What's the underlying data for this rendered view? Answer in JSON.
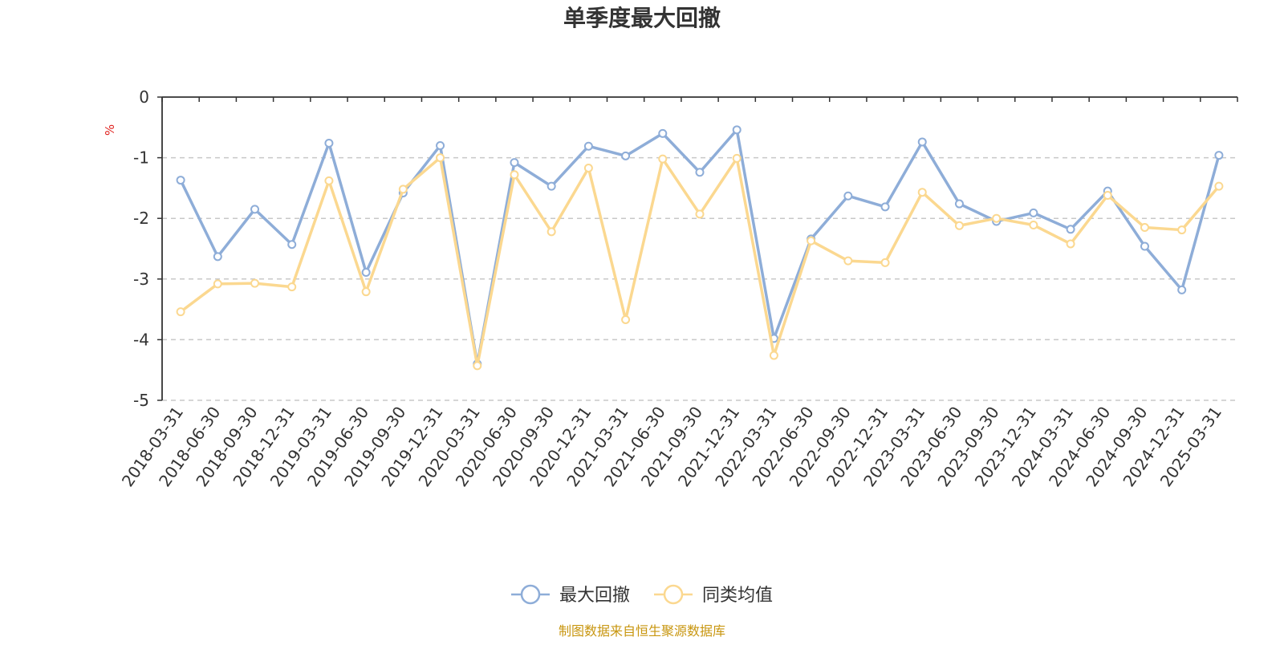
{
  "chart_data": {
    "type": "line",
    "title": "单季度最大回撤",
    "ylabel": "%",
    "ylim": [
      -5,
      0
    ],
    "yticks": [
      0,
      -1,
      -2,
      -3,
      -4,
      -5
    ],
    "grid": true,
    "legend_position": "bottom-center",
    "x": [
      "2018-03-31",
      "2018-06-30",
      "2018-09-30",
      "2018-12-31",
      "2019-03-31",
      "2019-06-30",
      "2019-09-30",
      "2019-12-31",
      "2020-03-31",
      "2020-06-30",
      "2020-09-30",
      "2020-12-31",
      "2021-03-31",
      "2021-06-30",
      "2021-09-30",
      "2021-12-31",
      "2022-03-31",
      "2022-06-30",
      "2022-09-30",
      "2022-12-31",
      "2023-03-31",
      "2023-06-30",
      "2023-09-30",
      "2023-12-31",
      "2024-03-31",
      "2024-06-30",
      "2024-09-30",
      "2024-12-31",
      "2025-03-31"
    ],
    "series": [
      {
        "name": "最大回撤",
        "color": "#8eadd8",
        "values": [
          -1.37,
          -2.63,
          -1.85,
          -2.43,
          -0.76,
          -2.89,
          -1.58,
          -0.8,
          -4.4,
          -1.08,
          -1.47,
          -0.81,
          -0.97,
          -0.6,
          -1.24,
          -0.54,
          -3.98,
          -2.34,
          -1.63,
          -1.81,
          -0.74,
          -1.76,
          -2.05,
          -1.91,
          -2.18,
          -1.55,
          -2.46,
          -3.18,
          -0.96
        ]
      },
      {
        "name": "同类均值",
        "color": "#fbd890",
        "values": [
          -3.54,
          -3.08,
          -3.07,
          -3.13,
          -1.38,
          -3.21,
          -1.52,
          -1.0,
          -4.43,
          -1.28,
          -2.22,
          -1.17,
          -3.67,
          -1.02,
          -1.93,
          -1.01,
          -4.26,
          -2.37,
          -2.7,
          -2.73,
          -1.57,
          -2.12,
          -2.0,
          -2.11,
          -2.42,
          -1.62,
          -2.15,
          -2.19,
          -1.47
        ]
      }
    ],
    "source": "制图数据来自恒生聚源数据库"
  }
}
